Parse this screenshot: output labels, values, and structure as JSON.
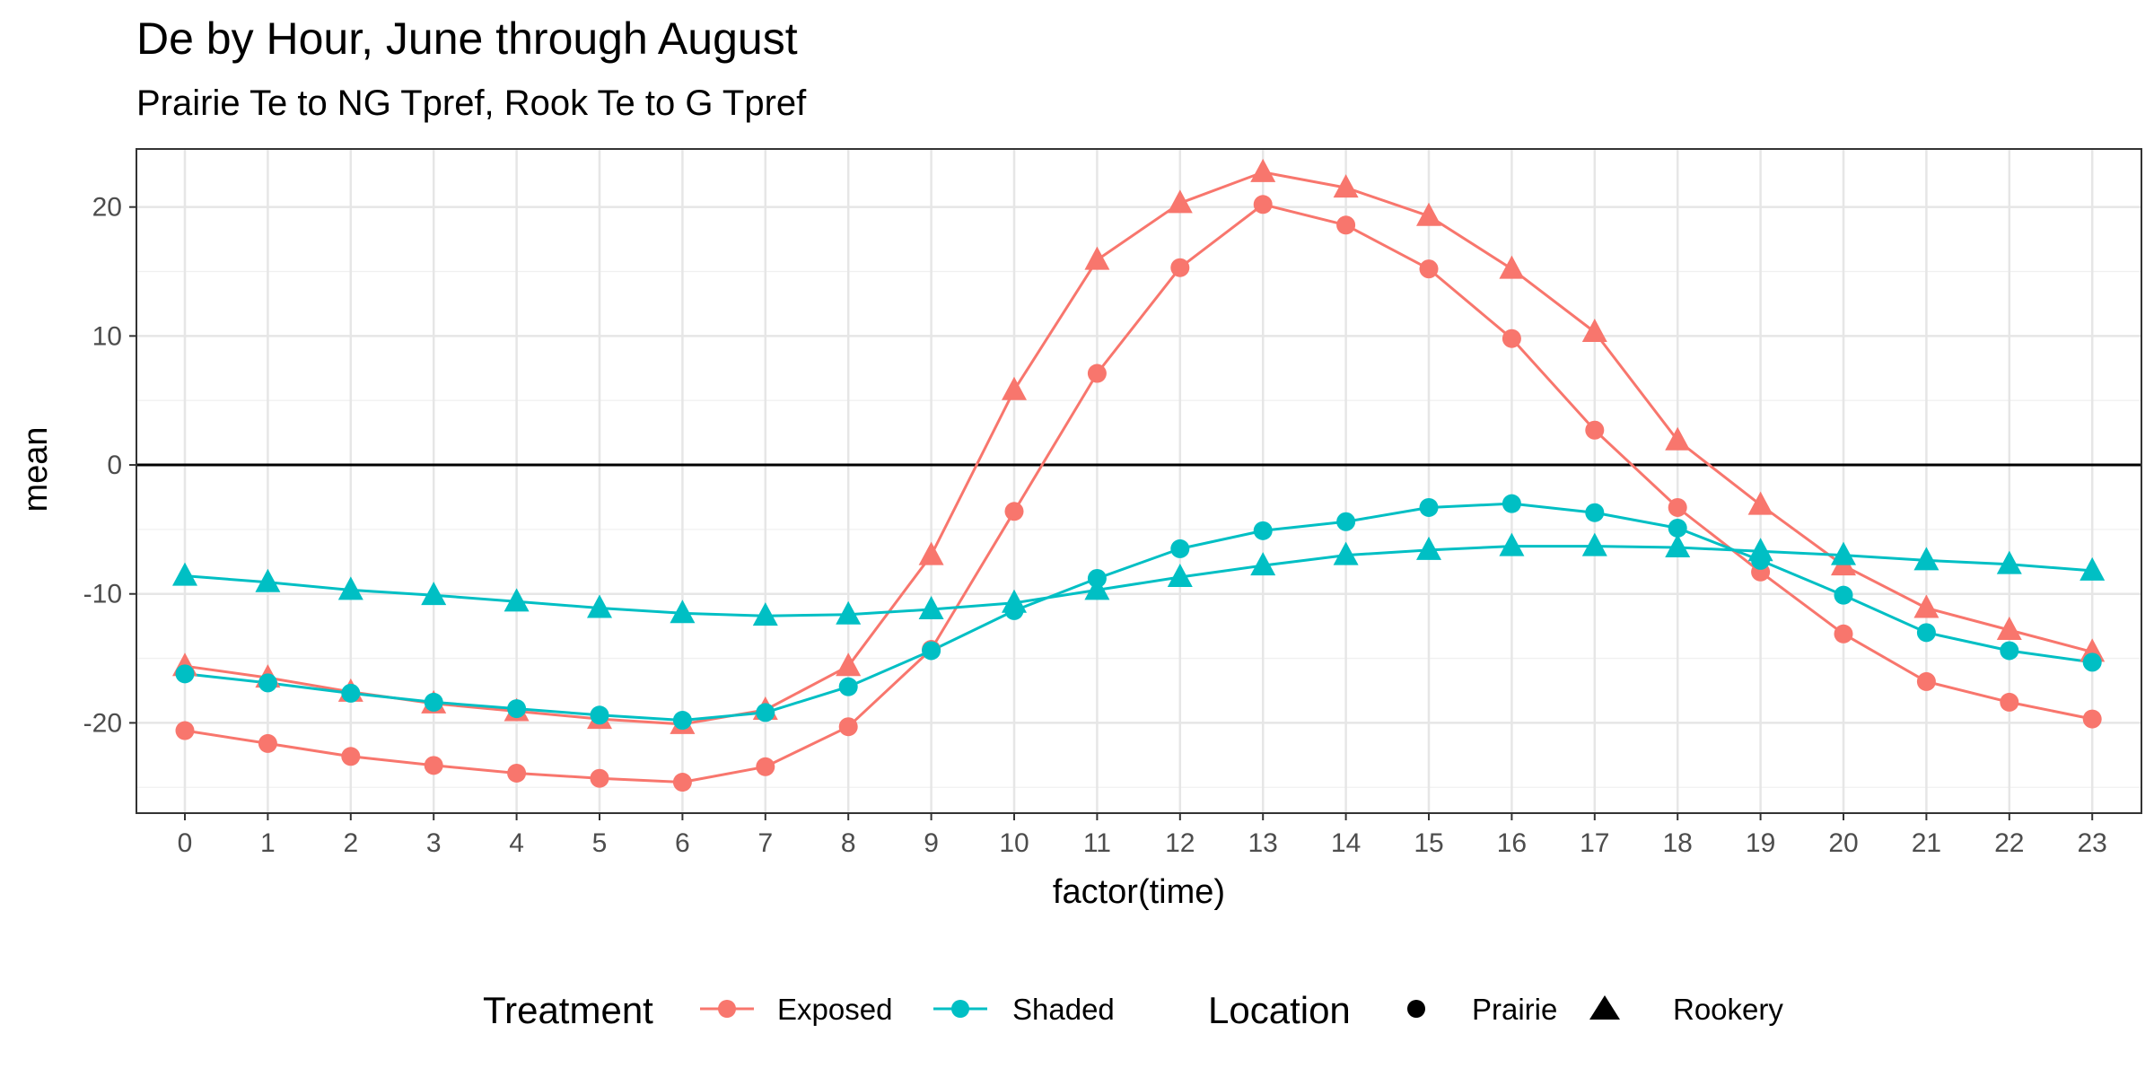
{
  "title": "De by Hour, June through August",
  "subtitle": "Prairie Te to NG Tpref, Rook Te to G Tpref",
  "chart_data": {
    "type": "line",
    "title": "De by Hour, June through August",
    "subtitle": "Prairie Te to NG Tpref, Rook Te to G Tpref",
    "xlabel": "factor(time)",
    "ylabel": "mean",
    "x": [
      "0",
      "1",
      "2",
      "3",
      "4",
      "5",
      "6",
      "7",
      "8",
      "9",
      "10",
      "11",
      "12",
      "13",
      "14",
      "15",
      "16",
      "17",
      "18",
      "19",
      "20",
      "21",
      "22",
      "23"
    ],
    "ylim": [
      -27,
      24.5
    ],
    "y_ticks": [
      -20,
      -10,
      0,
      10,
      20
    ],
    "y_tick_labels": [
      "-20",
      "-10",
      "0",
      "10",
      "20"
    ],
    "hline": 0,
    "grid": true,
    "legend_position": "bottom",
    "colors": {
      "Exposed": "#F8766D",
      "Shaded": "#00BFC4"
    },
    "series": [
      {
        "treatment": "Exposed",
        "location": "Prairie",
        "values": [
          -20.6,
          -21.6,
          -22.6,
          -23.3,
          -23.9,
          -24.3,
          -24.6,
          -23.4,
          -20.3,
          -14.3,
          -3.6,
          7.1,
          15.3,
          20.2,
          18.6,
          15.2,
          9.8,
          2.7,
          -3.3,
          -8.3,
          -13.1,
          -16.8,
          -18.4,
          -19.7
        ]
      },
      {
        "treatment": "Exposed",
        "location": "Rookery",
        "values": [
          -15.6,
          -16.5,
          -17.6,
          -18.5,
          -19.1,
          -19.7,
          -20.1,
          -19.0,
          -15.6,
          -7.0,
          5.8,
          15.9,
          20.3,
          22.7,
          21.5,
          19.3,
          15.2,
          10.3,
          1.9,
          -3.1,
          -7.8,
          -11.1,
          -12.8,
          -14.5
        ]
      },
      {
        "treatment": "Shaded",
        "location": "Prairie",
        "values": [
          -16.2,
          -16.9,
          -17.7,
          -18.4,
          -18.9,
          -19.4,
          -19.8,
          -19.2,
          -17.2,
          -14.4,
          -11.3,
          -8.8,
          -6.5,
          -5.1,
          -4.4,
          -3.3,
          -3.0,
          -3.7,
          -4.9,
          -7.4,
          -10.1,
          -13.0,
          -14.4,
          -15.3
        ]
      },
      {
        "treatment": "Shaded",
        "location": "Rookery",
        "values": [
          -8.6,
          -9.1,
          -9.7,
          -10.1,
          -10.6,
          -11.1,
          -11.5,
          -11.7,
          -11.6,
          -11.2,
          -10.7,
          -9.7,
          -8.7,
          -7.8,
          -7.0,
          -6.6,
          -6.3,
          -6.3,
          -6.4,
          -6.7,
          -7.0,
          -7.4,
          -7.7,
          -8.2
        ]
      }
    ],
    "legend": {
      "treatment": {
        "title": "Treatment",
        "items": [
          "Exposed",
          "Shaded"
        ]
      },
      "location": {
        "title": "Location",
        "items": [
          "Prairie",
          "Rookery"
        ]
      }
    }
  }
}
